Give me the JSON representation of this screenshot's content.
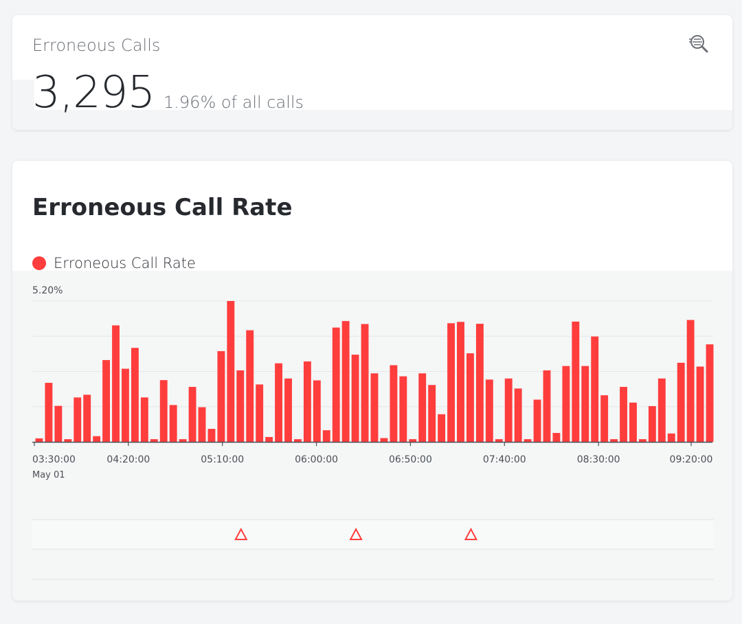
{
  "summary": {
    "title": "Erroneous Calls",
    "value": "3,295",
    "subtext": "1.96% of all calls",
    "action_icon": "search-list-icon"
  },
  "chart_card": {
    "title": "Erroneous Call Rate",
    "legend_label": "Erroneous Call Rate"
  },
  "colors": {
    "series": "#ff3d3d",
    "axis": "#4b4f56",
    "grid": "#e4e6e8"
  },
  "chart_data": {
    "type": "bar",
    "title": "Erroneous Call Rate",
    "xlabel": "",
    "ylabel": "",
    "y_max_label": "5.20%",
    "ylim": [
      0,
      5.2
    ],
    "grid": true,
    "legend": "top-left",
    "x_tick_labels": [
      "03:30:00",
      "04:20:00",
      "05:10:00",
      "06:00:00",
      "06:50:00",
      "07:40:00",
      "08:30:00",
      "09:20:00"
    ],
    "x_date_label": "May 01",
    "series": [
      {
        "name": "Erroneous Call Rate",
        "values": [
          0.13,
          2.18,
          1.33,
          0.1,
          1.64,
          1.74,
          0.21,
          3.02,
          4.3,
          2.7,
          3.47,
          1.64,
          0.1,
          2.28,
          1.36,
          0.1,
          2.03,
          1.28,
          0.48,
          3.35,
          5.2,
          2.64,
          4.12,
          2.12,
          0.18,
          2.9,
          2.34,
          0.1,
          2.97,
          2.27,
          0.43,
          4.22,
          4.46,
          3.22,
          4.35,
          2.53,
          0.14,
          2.83,
          2.42,
          0.1,
          2.53,
          2.1,
          1.02,
          4.38,
          4.43,
          3.27,
          4.36,
          2.3,
          0.1,
          2.34,
          1.97,
          0.1,
          1.56,
          2.64,
          0.33,
          2.8,
          4.44,
          2.8,
          3.89,
          1.72,
          0.1,
          2.03,
          1.45,
          0.1,
          1.32,
          2.34,
          0.31,
          2.92,
          4.5,
          2.78,
          3.6
        ]
      }
    ],
    "event_markers": [
      {
        "x_index": 21
      },
      {
        "x_index": 33
      },
      {
        "x_index": 45
      }
    ]
  }
}
